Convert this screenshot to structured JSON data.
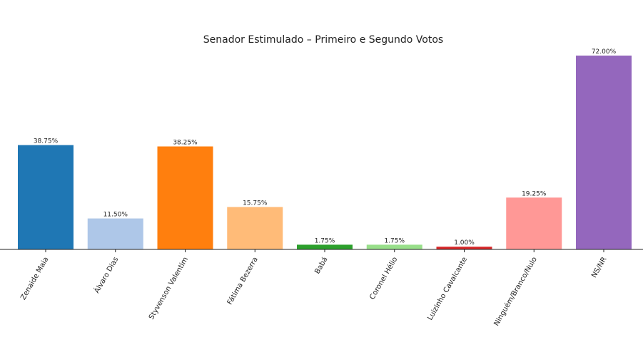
{
  "chart_data": {
    "type": "bar",
    "title": "Senador Estimulado – Primeiro e Segundo Votos",
    "categories": [
      "Zenaide Maia",
      "Álvaro Dias",
      "Styvenson Valentim",
      "Fátima Bezerra",
      "Babá",
      "Coronel Hélio",
      "Luizinho Cavalcante",
      "Ninguém/Branco/Nulo",
      "NS/NR"
    ],
    "values": [
      38.75,
      11.5,
      38.25,
      15.75,
      1.75,
      1.75,
      1.0,
      19.25,
      72.0
    ],
    "labels": [
      "38.75%",
      "11.50%",
      "38.25%",
      "15.75%",
      "1.75%",
      "1.75%",
      "1.00%",
      "19.25%",
      "72.00%"
    ],
    "colors": [
      "#1f77b4",
      "#aec7e8",
      "#ff7f0e",
      "#ffbb78",
      "#2ca02c",
      "#98df8a",
      "#d62728",
      "#ff9896",
      "#9467bd"
    ],
    "xlabel": "",
    "ylabel": "",
    "ylim": [
      0,
      72
    ],
    "grid": false,
    "legend": "none"
  }
}
